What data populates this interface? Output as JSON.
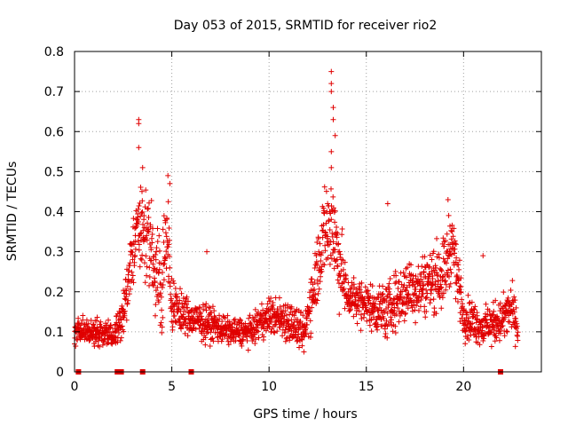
{
  "chart_data": {
    "type": "scatter",
    "title": "Day 053 of 2015, SRMTID for receiver rio2",
    "xlabel": "GPS time / hours",
    "ylabel": "SRMTID / TECUs",
    "xlim": [
      0,
      24
    ],
    "ylim": [
      0,
      0.8
    ],
    "x_ticks": [
      0,
      5,
      10,
      15,
      20
    ],
    "x_tick_labels": [
      "0",
      "5",
      "10",
      "15",
      "20"
    ],
    "y_ticks": [
      0,
      0.1,
      0.2,
      0.3,
      0.4,
      0.5,
      0.6,
      0.7,
      0.8
    ],
    "y_tick_labels": [
      "0",
      "0.1",
      "0.2",
      "0.3",
      "0.4",
      "0.5",
      "0.6",
      "0.7",
      "0.8"
    ],
    "grid": true,
    "marker": "+",
    "color": "#e00000",
    "series": [
      {
        "name": "SRMTID",
        "envelope": [
          {
            "hour": 0.0,
            "level": 0.1,
            "spread": 0.03
          },
          {
            "hour": 1.0,
            "level": 0.1,
            "spread": 0.03
          },
          {
            "hour": 2.0,
            "level": 0.09,
            "spread": 0.03
          },
          {
            "hour": 2.5,
            "level": 0.14,
            "spread": 0.05
          },
          {
            "hour": 3.0,
            "level": 0.3,
            "spread": 0.09
          },
          {
            "hour": 3.5,
            "level": 0.37,
            "spread": 0.1
          },
          {
            "hour": 4.0,
            "level": 0.28,
            "spread": 0.1
          },
          {
            "hour": 4.5,
            "level": 0.22,
            "spread": 0.11
          },
          {
            "hour": 4.8,
            "level": 0.36,
            "spread": 0.1
          },
          {
            "hour": 5.0,
            "level": 0.16,
            "spread": 0.06
          },
          {
            "hour": 6.0,
            "level": 0.13,
            "spread": 0.04
          },
          {
            "hour": 7.0,
            "level": 0.12,
            "spread": 0.04
          },
          {
            "hour": 8.0,
            "level": 0.1,
            "spread": 0.03
          },
          {
            "hour": 9.0,
            "level": 0.1,
            "spread": 0.03
          },
          {
            "hour": 10.0,
            "level": 0.14,
            "spread": 0.04
          },
          {
            "hour": 11.0,
            "level": 0.13,
            "spread": 0.05
          },
          {
            "hour": 11.8,
            "level": 0.09,
            "spread": 0.04
          },
          {
            "hour": 12.3,
            "level": 0.22,
            "spread": 0.08
          },
          {
            "hour": 12.8,
            "level": 0.34,
            "spread": 0.1
          },
          {
            "hour": 13.2,
            "level": 0.38,
            "spread": 0.12
          },
          {
            "hour": 13.6,
            "level": 0.28,
            "spread": 0.1
          },
          {
            "hour": 14.0,
            "level": 0.19,
            "spread": 0.05
          },
          {
            "hour": 15.0,
            "level": 0.17,
            "spread": 0.05
          },
          {
            "hour": 16.0,
            "level": 0.15,
            "spread": 0.06
          },
          {
            "hour": 17.0,
            "level": 0.2,
            "spread": 0.07
          },
          {
            "hour": 18.0,
            "level": 0.22,
            "spread": 0.07
          },
          {
            "hour": 19.0,
            "level": 0.25,
            "spread": 0.08
          },
          {
            "hour": 19.4,
            "level": 0.33,
            "spread": 0.08
          },
          {
            "hour": 20.0,
            "level": 0.14,
            "spread": 0.05
          },
          {
            "hour": 21.0,
            "level": 0.11,
            "spread": 0.04
          },
          {
            "hour": 22.0,
            "level": 0.13,
            "spread": 0.05
          },
          {
            "hour": 22.5,
            "level": 0.16,
            "spread": 0.06
          },
          {
            "hour": 22.8,
            "level": 0.1,
            "spread": 0.03
          }
        ],
        "peaks": [
          {
            "x": 3.3,
            "y": 0.63
          },
          {
            "x": 3.3,
            "y": 0.62
          },
          {
            "x": 3.3,
            "y": 0.56
          },
          {
            "x": 3.5,
            "y": 0.51
          },
          {
            "x": 4.8,
            "y": 0.49
          },
          {
            "x": 4.9,
            "y": 0.47
          },
          {
            "x": 13.2,
            "y": 0.75
          },
          {
            "x": 13.2,
            "y": 0.72
          },
          {
            "x": 13.2,
            "y": 0.7
          },
          {
            "x": 13.3,
            "y": 0.66
          },
          {
            "x": 13.3,
            "y": 0.63
          },
          {
            "x": 13.4,
            "y": 0.59
          },
          {
            "x": 13.2,
            "y": 0.55
          },
          {
            "x": 13.2,
            "y": 0.51
          },
          {
            "x": 16.1,
            "y": 0.42
          },
          {
            "x": 19.2,
            "y": 0.43
          },
          {
            "x": 6.8,
            "y": 0.3
          },
          {
            "x": 21.0,
            "y": 0.29
          }
        ]
      }
    ],
    "zero_flags_hours": [
      0.2,
      2.2,
      2.3,
      2.4,
      3.5,
      6.0,
      21.9
    ]
  }
}
